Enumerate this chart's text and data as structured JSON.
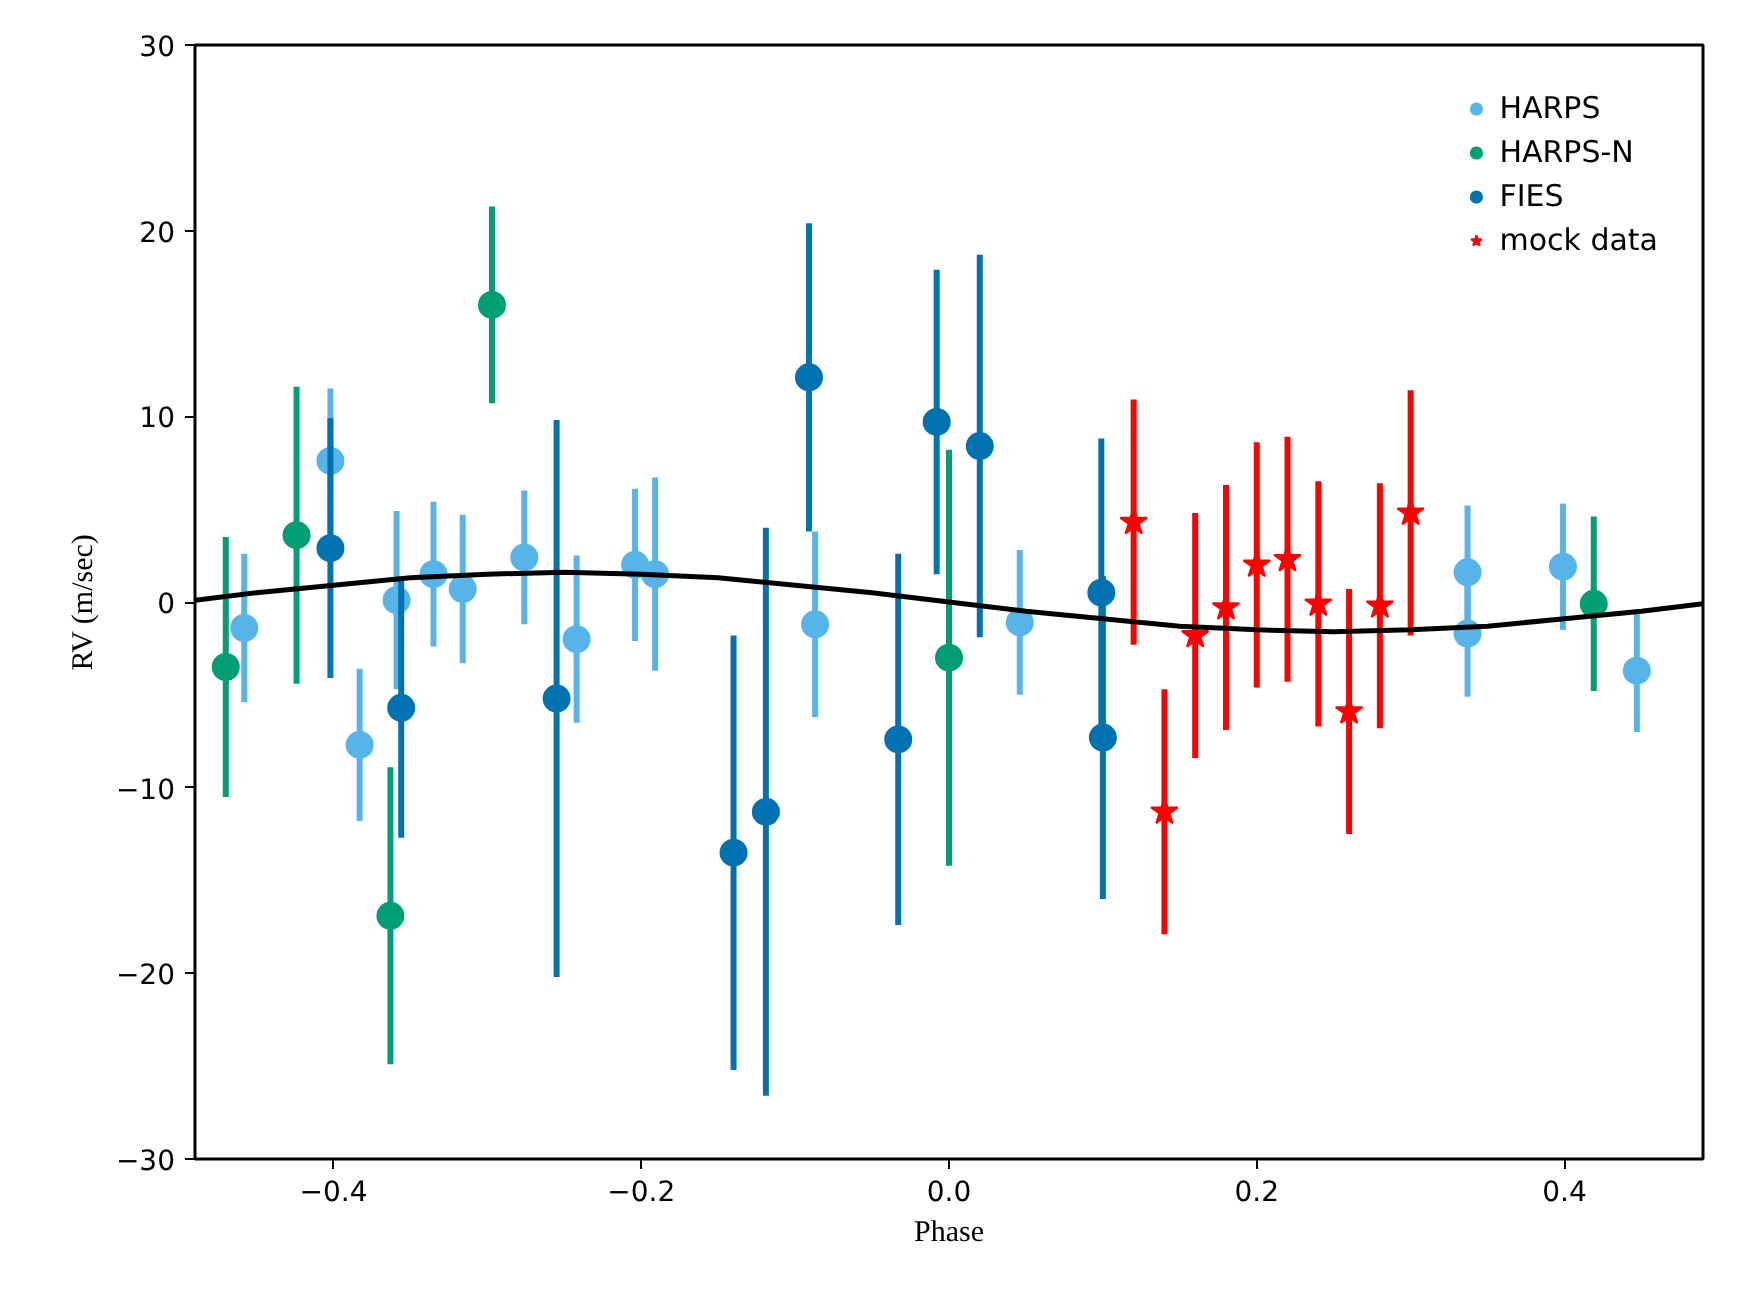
{
  "chart_data": {
    "type": "scatter",
    "xlabel": "Phase",
    "ylabel": "RV (m/sec)",
    "xlim": [
      -0.49,
      0.49
    ],
    "ylim": [
      -30,
      30
    ],
    "xticks": [
      {
        "value": -0.4,
        "label": "−0.4"
      },
      {
        "value": -0.2,
        "label": "−0.2"
      },
      {
        "value": 0.0,
        "label": "0.0"
      },
      {
        "value": 0.2,
        "label": "0.2"
      },
      {
        "value": 0.4,
        "label": "0.4"
      }
    ],
    "yticks": [
      {
        "value": -30,
        "label": "−30"
      },
      {
        "value": -20,
        "label": "−20"
      },
      {
        "value": -10,
        "label": "−10"
      },
      0,
      10,
      20,
      30
    ],
    "grid": false,
    "legend": "top right",
    "series": [
      {
        "name": "HARPS",
        "color": "#56b4e9",
        "marker": "circle",
        "x": [
          -0.458,
          -0.402,
          -0.383,
          -0.359,
          -0.335,
          -0.316,
          -0.276,
          -0.242,
          -0.204,
          -0.191,
          -0.087,
          0.046,
          0.337,
          0.337,
          0.399,
          0.447
        ],
        "values": [
          -1.4,
          7.6,
          -7.7,
          0.1,
          1.5,
          0.7,
          2.4,
          -2.0,
          2.0,
          1.5,
          -1.2,
          -1.1,
          1.6,
          -1.7,
          1.9,
          -3.7
        ],
        "errors": [
          4.0,
          3.9,
          4.1,
          4.8,
          3.9,
          4.0,
          3.6,
          4.5,
          4.1,
          5.2,
          5.0,
          3.9,
          3.6,
          3.4,
          3.4,
          3.3
        ]
      },
      {
        "name": "HARPS-N",
        "color": "#009e73",
        "marker": "circle",
        "x": [
          -0.47,
          -0.424,
          -0.363,
          -0.297,
          0.0,
          0.419
        ],
        "values": [
          -3.5,
          3.6,
          -16.9,
          16.0,
          -3.0,
          -0.1
        ],
        "errors": [
          7.0,
          8.0,
          8.0,
          5.3,
          11.2,
          4.7
        ]
      },
      {
        "name": "FIES",
        "color": "#0072b2",
        "marker": "circle",
        "x": [
          -0.402,
          -0.356,
          -0.255,
          -0.14,
          -0.119,
          -0.091,
          -0.033,
          -0.008,
          0.02,
          0.099,
          0.1
        ],
        "values": [
          2.9,
          -5.7,
          -5.2,
          -13.5,
          -11.3,
          12.1,
          -7.4,
          9.7,
          8.4,
          0.5,
          -7.3
        ],
        "errors": [
          7.0,
          7.0,
          15.0,
          11.7,
          15.3,
          8.3,
          10.0,
          8.2,
          10.3,
          8.3,
          8.7
        ]
      },
      {
        "name": "mock data",
        "color": "#ff0000",
        "marker": "star",
        "x": [
          0.12,
          0.14,
          0.16,
          0.18,
          0.2,
          0.22,
          0.24,
          0.26,
          0.28,
          0.3
        ],
        "values": [
          4.3,
          -11.3,
          -1.8,
          -0.3,
          2.0,
          2.3,
          -0.1,
          -5.9,
          -0.2,
          4.8
        ],
        "errors": [
          6.6,
          6.6,
          6.6,
          6.6,
          6.6,
          6.6,
          6.6,
          6.6,
          6.6,
          6.6
        ]
      },
      {
        "type": "line",
        "color": "#000000",
        "x": [
          -0.49,
          -0.45,
          -0.4,
          -0.35,
          -0.3,
          -0.25,
          -0.2,
          -0.15,
          -0.1,
          -0.05,
          0.0,
          0.05,
          0.1,
          0.15,
          0.2,
          0.25,
          0.3,
          0.35,
          0.4,
          0.45,
          0.49
        ],
        "values": [
          0.1,
          0.5,
          0.9,
          1.3,
          1.5,
          1.6,
          1.5,
          1.3,
          0.9,
          0.5,
          0.0,
          -0.5,
          -0.9,
          -1.3,
          -1.5,
          -1.6,
          -1.5,
          -1.3,
          -0.9,
          -0.5,
          -0.1
        ]
      }
    ]
  }
}
